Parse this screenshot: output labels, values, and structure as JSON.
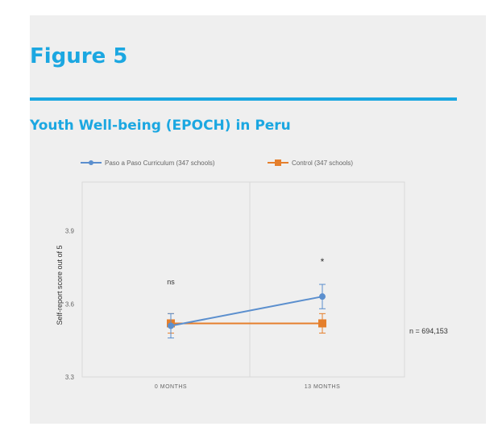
{
  "figure": {
    "title": "Figure 5",
    "subtitle": "Youth Well-being (EPOCH) in Peru"
  },
  "colors": {
    "accent": "#1ba7e1",
    "series_blue": "#5b8fce",
    "series_orange": "#e57f2c"
  },
  "chart_data": {
    "type": "line",
    "x": [
      "0 MONTHS",
      "13 MONTHS"
    ],
    "ylabel": "Self-report score out of 5",
    "ylim": [
      3.3,
      4.1
    ],
    "yticks": [
      3.3,
      3.6,
      3.9
    ],
    "grid": false,
    "legend_placement": "top",
    "series": [
      {
        "name": "Paso a Paso Curriculum (347 schools)",
        "values": [
          3.51,
          3.63
        ],
        "error": [
          0.05,
          0.05
        ],
        "color": "#5b8fce"
      },
      {
        "name": "Control (347 schools)",
        "values": [
          3.52,
          3.52
        ],
        "error": [
          0.04,
          0.04
        ],
        "color": "#e57f2c"
      }
    ],
    "annotations": {
      "first_point": "ns",
      "second_point": "*",
      "sample": "n = 694,153"
    }
  }
}
